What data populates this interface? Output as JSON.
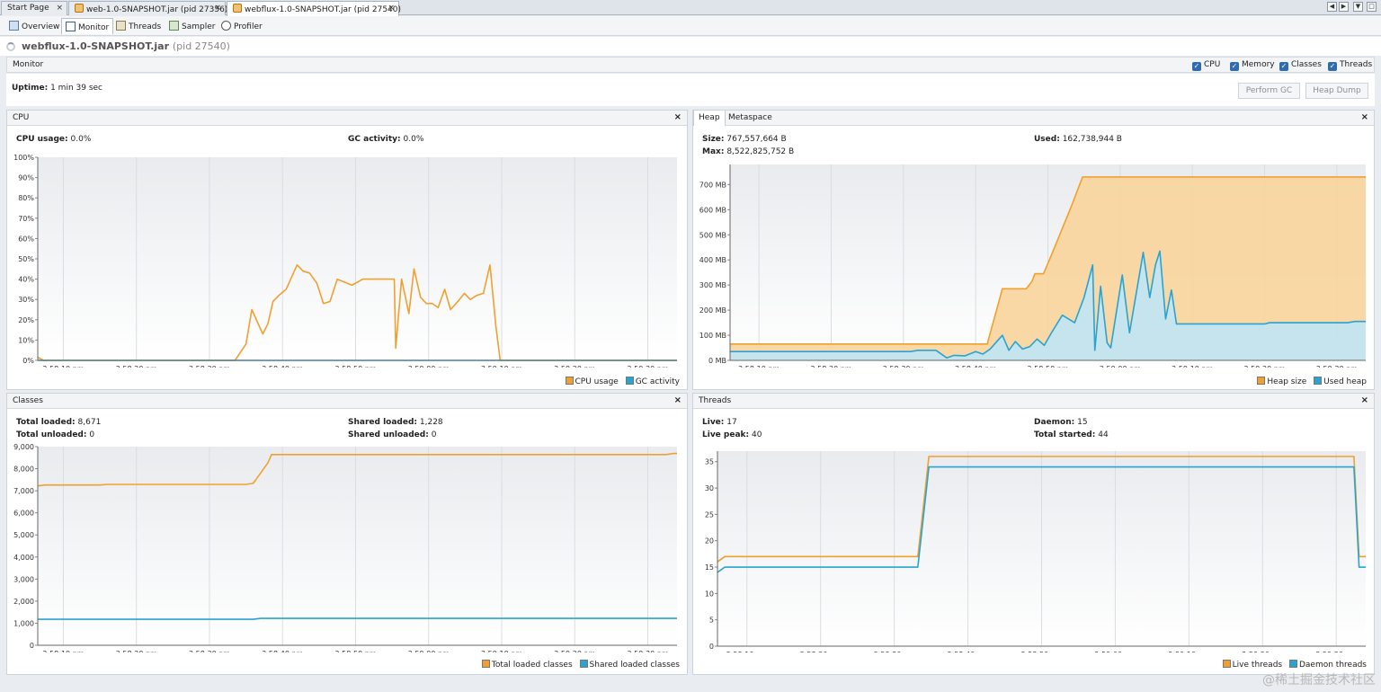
{
  "doc_tabs": [
    {
      "label": "Start Page"
    },
    {
      "label": "web-1.0-SNAPSHOT.jar (pid 27356)"
    },
    {
      "label": "webflux-1.0-SNAPSHOT.jar (pid 27540)"
    }
  ],
  "sub_tabs": [
    {
      "label": "Overview",
      "icon": "overview-icon"
    },
    {
      "label": "Monitor",
      "icon": "monitor-icon"
    },
    {
      "label": "Threads",
      "icon": "threads-icon"
    },
    {
      "label": "Sampler",
      "icon": "sampler-icon"
    },
    {
      "label": "Profiler",
      "icon": "profiler-icon"
    }
  ],
  "app": {
    "name": "webflux-1.0-SNAPSHOT.jar",
    "pid": "(pid 27540)"
  },
  "monitor": {
    "label": "Monitor",
    "checkboxes": [
      {
        "label": "CPU",
        "checked": true
      },
      {
        "label": "Memory",
        "checked": true
      },
      {
        "label": "Classes",
        "checked": true
      },
      {
        "label": "Threads",
        "checked": true
      }
    ],
    "uptime_label": "Uptime:",
    "uptime_value": "1 min 39 sec",
    "perform_gc": "Perform GC",
    "heap_dump": "Heap Dump"
  },
  "colors": {
    "orange": "#f0a030",
    "blue": "#29a3d1",
    "orange_fill": "#f8d49b",
    "blue_fill": "#bfe6f5"
  },
  "cpu_panel": {
    "title": "CPU",
    "stats": [
      {
        "label": "CPU usage:",
        "value": "0.0%"
      },
      {
        "label": "GC activity:",
        "value": "0.0%"
      }
    ]
  },
  "heap_panel": {
    "tabs": [
      "Heap",
      "Metaspace"
    ],
    "stats": [
      {
        "label": "Size:",
        "value": "767,557,664 B"
      },
      {
        "label": "Max:",
        "value": "8,522,825,752 B"
      },
      {
        "label": "Used:",
        "value": "162,738,944 B"
      }
    ]
  },
  "classes_panel": {
    "title": "Classes",
    "stats": [
      {
        "label": "Total loaded:",
        "value": "8,671"
      },
      {
        "label": "Total unloaded:",
        "value": "0"
      },
      {
        "label": "Shared loaded:",
        "value": "1,228"
      },
      {
        "label": "Shared unloaded:",
        "value": "0"
      }
    ]
  },
  "threads_panel": {
    "title": "Threads",
    "stats": [
      {
        "label": "Live:",
        "value": "17"
      },
      {
        "label": "Live peak:",
        "value": "40"
      },
      {
        "label": "Daemon:",
        "value": "15"
      },
      {
        "label": "Total started:",
        "value": "44"
      }
    ]
  },
  "chart_data": [
    {
      "id": "cpu",
      "type": "line",
      "xlabels": [
        "3:58:10 pm",
        "3:58:20 pm",
        "3:58:30 pm",
        "3:58:40 pm",
        "3:58:50 pm",
        "3:59:00 pm",
        "3:59:10 pm",
        "3:59:20 pm",
        "3:59:30 pm"
      ],
      "xlabel_times": [
        10,
        20,
        30,
        40,
        50,
        60,
        70,
        80,
        90
      ],
      "xlim": [
        6.5,
        94
      ],
      "ylim": [
        0,
        100
      ],
      "yticks": [
        0,
        10,
        20,
        30,
        40,
        50,
        60,
        70,
        80,
        90,
        100
      ],
      "ytick_labels": [
        "0%",
        "10%",
        "20%",
        "30%",
        "40%",
        "50%",
        "60%",
        "70%",
        "80%",
        "90%",
        "100%"
      ],
      "series": [
        {
          "name": "CPU usage",
          "color": "#f0a030",
          "fill": false,
          "points": [
            [
              6.5,
              1.5
            ],
            [
              7.3,
              0
            ],
            [
              33.5,
              0
            ],
            [
              35,
              8
            ],
            [
              35.8,
              25
            ],
            [
              37.3,
              13
            ],
            [
              38,
              18
            ],
            [
              38.7,
              29
            ],
            [
              39.5,
              32
            ],
            [
              40.5,
              35
            ],
            [
              42,
              47
            ],
            [
              42.8,
              44
            ],
            [
              43.7,
              43
            ],
            [
              44.7,
              38
            ],
            [
              45.6,
              28
            ],
            [
              46.5,
              29
            ],
            [
              47.5,
              40
            ],
            [
              49.5,
              37
            ],
            [
              51,
              40
            ],
            [
              55.3,
              40
            ],
            [
              55.5,
              6
            ],
            [
              56.3,
              40
            ],
            [
              57.3,
              23
            ],
            [
              58,
              45
            ],
            [
              58.9,
              31
            ],
            [
              59.7,
              28
            ],
            [
              60.5,
              28
            ],
            [
              61.3,
              26
            ],
            [
              62.2,
              35
            ],
            [
              63,
              25
            ],
            [
              64,
              29
            ],
            [
              64.9,
              33
            ],
            [
              65.7,
              30
            ],
            [
              66.6,
              32
            ],
            [
              67.5,
              33
            ],
            [
              68.4,
              47
            ],
            [
              69.2,
              17
            ],
            [
              69.8,
              0
            ],
            [
              94,
              0
            ]
          ]
        },
        {
          "name": "GC activity",
          "color": "#29a3d1",
          "fill": false,
          "points": [
            [
              6.5,
              0
            ],
            [
              94,
              0
            ]
          ]
        }
      ]
    },
    {
      "id": "heap",
      "type": "area",
      "xlabels": [
        "3:58:10 pm",
        "3:58:20 pm",
        "3:58:30 pm",
        "3:58:40 pm",
        "3:58:50 pm",
        "3:59:00 pm",
        "3:59:10 pm",
        "3:59:20 pm",
        "3:59:30 pm"
      ],
      "xlabel_times": [
        10,
        20,
        30,
        40,
        50,
        60,
        70,
        80,
        90
      ],
      "xlim": [
        6,
        94
      ],
      "ylim": [
        0,
        780
      ],
      "yticks": [
        0,
        100,
        200,
        300,
        400,
        500,
        600,
        700
      ],
      "ytick_labels": [
        "0 MB",
        "100 MB",
        "200 MB",
        "300 MB",
        "400 MB",
        "500 MB",
        "600 MB",
        "700 MB"
      ],
      "series": [
        {
          "name": "Heap size",
          "color": "#f0a030",
          "fill": true,
          "fill_color": "#f8d49b",
          "points": [
            [
              6,
              65
            ],
            [
              41.6,
              65
            ],
            [
              43.7,
              285
            ],
            [
              47,
              285
            ],
            [
              47.8,
              315
            ],
            [
              48.2,
              345
            ],
            [
              49.4,
              345
            ],
            [
              50.5,
              420
            ],
            [
              53.2,
              610
            ],
            [
              54.8,
              730
            ],
            [
              94,
              730
            ]
          ]
        },
        {
          "name": "Used heap",
          "color": "#29a3d1",
          "fill": true,
          "fill_color": "#bfe6f5",
          "points": [
            [
              6,
              35
            ],
            [
              31,
              35
            ],
            [
              32,
              40
            ],
            [
              34.5,
              40
            ],
            [
              36,
              10
            ],
            [
              37,
              20
            ],
            [
              38.5,
              18
            ],
            [
              40,
              35
            ],
            [
              41,
              25
            ],
            [
              42,
              45
            ],
            [
              43.7,
              100
            ],
            [
              44.6,
              40
            ],
            [
              45.5,
              75
            ],
            [
              46.5,
              45
            ],
            [
              47.5,
              55
            ],
            [
              48.5,
              85
            ],
            [
              49.5,
              60
            ],
            [
              50.5,
              110
            ],
            [
              52,
              180
            ],
            [
              53.7,
              150
            ],
            [
              55,
              250
            ],
            [
              56.2,
              380
            ],
            [
              56.5,
              40
            ],
            [
              57.3,
              295
            ],
            [
              58.2,
              70
            ],
            [
              58.7,
              50
            ],
            [
              60.3,
              340
            ],
            [
              61.3,
              110
            ],
            [
              63.2,
              430
            ],
            [
              64.1,
              250
            ],
            [
              64.9,
              380
            ],
            [
              65.5,
              435
            ],
            [
              66.3,
              165
            ],
            [
              67.1,
              280
            ],
            [
              67.8,
              145
            ],
            [
              74,
              145
            ],
            [
              80,
              145
            ],
            [
              80.7,
              150
            ],
            [
              91.5,
              150
            ],
            [
              92.5,
              155
            ],
            [
              94,
              155
            ]
          ]
        }
      ]
    },
    {
      "id": "classes",
      "type": "line",
      "xlabels": [
        "3:58:10 pm",
        "3:58:20 pm",
        "3:58:30 pm",
        "3:58:40 pm",
        "3:58:50 pm",
        "3:59:00 pm",
        "3:59:10 pm",
        "3:59:20 pm",
        "3:59:30 pm"
      ],
      "xlabel_times": [
        10,
        20,
        30,
        40,
        50,
        60,
        70,
        80,
        90
      ],
      "xlim": [
        6.5,
        94
      ],
      "ylim": [
        0,
        9000
      ],
      "yticks": [
        0,
        1000,
        2000,
        3000,
        4000,
        5000,
        6000,
        7000,
        8000,
        9000
      ],
      "ytick_labels": [
        "0",
        "1,000",
        "2,000",
        "3,000",
        "4,000",
        "5,000",
        "6,000",
        "7,000",
        "8,000",
        "9,000"
      ],
      "series": [
        {
          "name": "Total loaded classes",
          "color": "#f0a030",
          "fill": false,
          "points": [
            [
              6.5,
              7220
            ],
            [
              7.5,
              7260
            ],
            [
              15,
              7260
            ],
            [
              16,
              7290
            ],
            [
              35,
              7290
            ],
            [
              36,
              7340
            ],
            [
              37,
              7800
            ],
            [
              38,
              8270
            ],
            [
              38.5,
              8640
            ],
            [
              92.5,
              8640
            ],
            [
              93.5,
              8690
            ],
            [
              94,
              8690
            ]
          ]
        },
        {
          "name": "Shared loaded classes",
          "color": "#29a3d1",
          "fill": false,
          "points": [
            [
              6.5,
              1180
            ],
            [
              36,
              1180
            ],
            [
              37,
              1220
            ],
            [
              94,
              1220
            ]
          ]
        }
      ]
    },
    {
      "id": "threads",
      "type": "line",
      "xlabels": [
        "3:58:10 pm",
        "3:58:20 pm",
        "3:58:30 pm",
        "3:58:40 pm",
        "3:58:50 pm",
        "3:59:00 pm",
        "3:59:10 pm",
        "3:59:20 pm",
        "3:59:30 pm"
      ],
      "xlabel_times": [
        10,
        20,
        30,
        40,
        50,
        60,
        70,
        80,
        90
      ],
      "xlim": [
        6,
        94
      ],
      "ylim": [
        0,
        37
      ],
      "yticks": [
        0,
        5,
        10,
        15,
        20,
        25,
        30,
        35
      ],
      "ytick_labels": [
        "0",
        "5",
        "10",
        "15",
        "20",
        "25",
        "30",
        "35"
      ],
      "series": [
        {
          "name": "Live threads",
          "color": "#f0a030",
          "fill": false,
          "points": [
            [
              6,
              16
            ],
            [
              7,
              17
            ],
            [
              33.2,
              17
            ],
            [
              34.7,
              36
            ],
            [
              92.4,
              36
            ],
            [
              93.1,
              17
            ],
            [
              94,
              17
            ]
          ]
        },
        {
          "name": "Daemon threads",
          "color": "#29a3d1",
          "fill": false,
          "points": [
            [
              6,
              14
            ],
            [
              7,
              15
            ],
            [
              33.2,
              15
            ],
            [
              34.7,
              34
            ],
            [
              92.4,
              34
            ],
            [
              93.1,
              15
            ],
            [
              94,
              15
            ]
          ]
        }
      ]
    }
  ],
  "watermark": "@稀土掘金技术社区"
}
